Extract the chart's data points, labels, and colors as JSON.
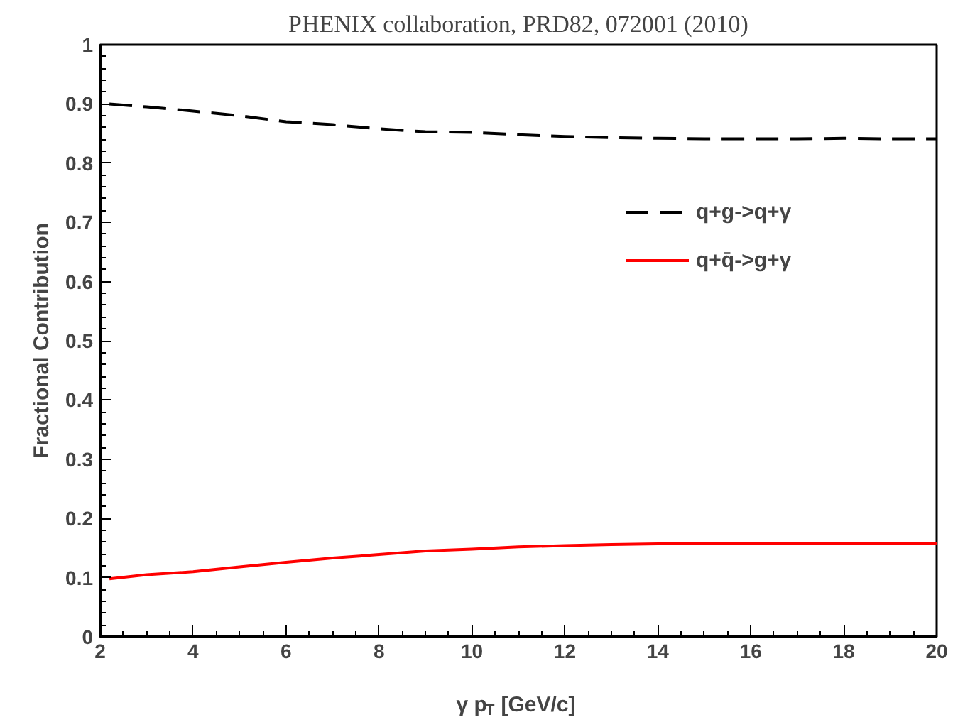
{
  "chart_data": {
    "type": "line",
    "title": "PHENIX collaboration, PRD82, 072001 (2010)",
    "xlabel": "γ p$_{T}$ [GeV/c]",
    "ylabel": "Fractional Contribution",
    "x": [
      2.2,
      3,
      4,
      5,
      6,
      7,
      8,
      9,
      10,
      11,
      12,
      13,
      14,
      15,
      16,
      17,
      18,
      19,
      20
    ],
    "series": [
      {
        "name": "q+g->q+γ",
        "color": "#000000",
        "line_style": "dashed",
        "values": [
          0.9,
          0.895,
          0.888,
          0.88,
          0.87,
          0.865,
          0.858,
          0.853,
          0.852,
          0.848,
          0.845,
          0.843,
          0.842,
          0.841,
          0.841,
          0.841,
          0.842,
          0.841,
          0.841
        ]
      },
      {
        "name": "q+q̄->g+γ",
        "color": "#ff0000",
        "line_style": "solid",
        "values": [
          0.098,
          0.105,
          0.11,
          0.118,
          0.126,
          0.133,
          0.139,
          0.145,
          0.148,
          0.152,
          0.154,
          0.156,
          0.157,
          0.158,
          0.158,
          0.158,
          0.158,
          0.158,
          0.158
        ]
      }
    ],
    "xlim": [
      2,
      20
    ],
    "xticks": [
      2,
      4,
      6,
      8,
      10,
      12,
      14,
      16,
      18,
      20
    ],
    "ylim": [
      0,
      1
    ],
    "yticks": [
      0,
      0.1,
      0.2,
      0.3,
      0.4,
      0.5,
      0.6,
      0.7,
      0.8,
      0.9,
      1
    ],
    "grid": false,
    "legend": "top right",
    "marker": "none"
  }
}
